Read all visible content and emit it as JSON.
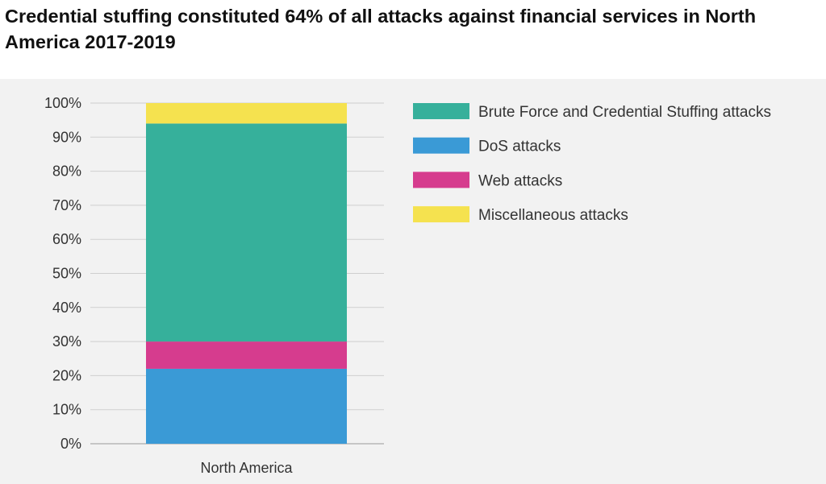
{
  "title": "Credential stuffing constituted 64% of all attacks against financial services in North America 2017-2019",
  "chart_data": {
    "type": "bar",
    "stacked": true,
    "categories": [
      "North America"
    ],
    "series": [
      {
        "name": "DoS attacks",
        "values": [
          22
        ],
        "color": "#3a9ad6"
      },
      {
        "name": "Web attacks",
        "values": [
          8
        ],
        "color": "#d63c8e"
      },
      {
        "name": "Brute Force and Credential Stuffing attacks",
        "values": [
          64
        ],
        "color": "#36b09b"
      },
      {
        "name": "Miscellaneous attacks",
        "values": [
          6
        ],
        "color": "#f5e24f"
      }
    ],
    "legend_order": [
      "Brute Force and Credential Stuffing attacks",
      "DoS attacks",
      "Web attacks",
      "Miscellaneous attacks"
    ],
    "ylim": [
      0,
      100
    ],
    "yticks": [
      "0%",
      "10%",
      "20%",
      "30%",
      "40%",
      "50%",
      "60%",
      "70%",
      "80%",
      "90%",
      "100%"
    ],
    "grid": true,
    "legend_position": "top-right"
  }
}
